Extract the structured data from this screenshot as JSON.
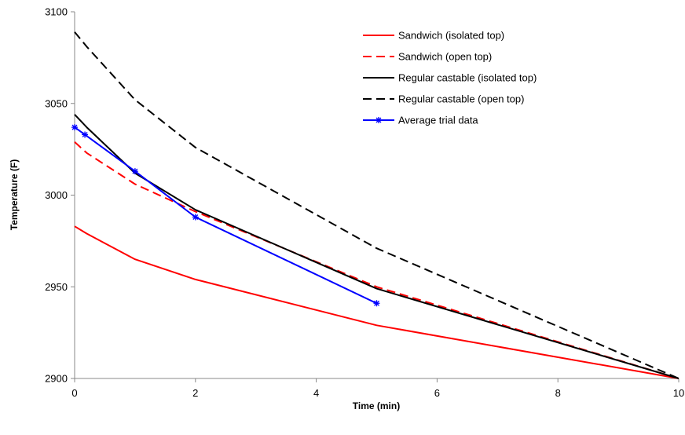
{
  "chart_data": {
    "type": "line",
    "title": "",
    "xlabel": "Time (min)",
    "ylabel": "Temperature (F)",
    "xlim": [
      0,
      10
    ],
    "ylim": [
      2900,
      3100
    ],
    "xticks": [
      0,
      2,
      4,
      6,
      8,
      10
    ],
    "yticks": [
      2900,
      2950,
      3000,
      3050,
      3100
    ],
    "grid": false,
    "legend_position": "top-right",
    "series": [
      {
        "name": "Sandwich (isolated top)",
        "color": "#ff0000",
        "dash": "solid",
        "marker": "none",
        "x": [
          0,
          0.2,
          1,
          2,
          5,
          10
        ],
        "y": [
          2983,
          2979,
          2965,
          2954,
          2929,
          2900
        ]
      },
      {
        "name": "Sandwich (open top)",
        "color": "#ff0000",
        "dash": "dashed",
        "marker": "none",
        "x": [
          0,
          0.2,
          1,
          2,
          5,
          10
        ],
        "y": [
          3029,
          3023,
          3006,
          2991,
          2950,
          2900
        ]
      },
      {
        "name": "Regular castable (isolated top)",
        "color": "#000000",
        "dash": "solid",
        "marker": "none",
        "x": [
          0,
          0.2,
          1,
          2,
          5,
          10
        ],
        "y": [
          3044,
          3037,
          3012,
          2992,
          2949,
          2900
        ]
      },
      {
        "name": "Regular castable (open top)",
        "color": "#000000",
        "dash": "dashed",
        "marker": "none",
        "x": [
          0,
          0.2,
          1,
          2,
          5,
          10
        ],
        "y": [
          3089,
          3081,
          3052,
          3026,
          2971,
          2900
        ]
      },
      {
        "name": "Average trial data",
        "color": "#0000ff",
        "dash": "solid",
        "marker": "star",
        "x": [
          0,
          0.17,
          1,
          2,
          5
        ],
        "y": [
          3037,
          3033,
          3013,
          2988,
          2941
        ]
      }
    ]
  }
}
